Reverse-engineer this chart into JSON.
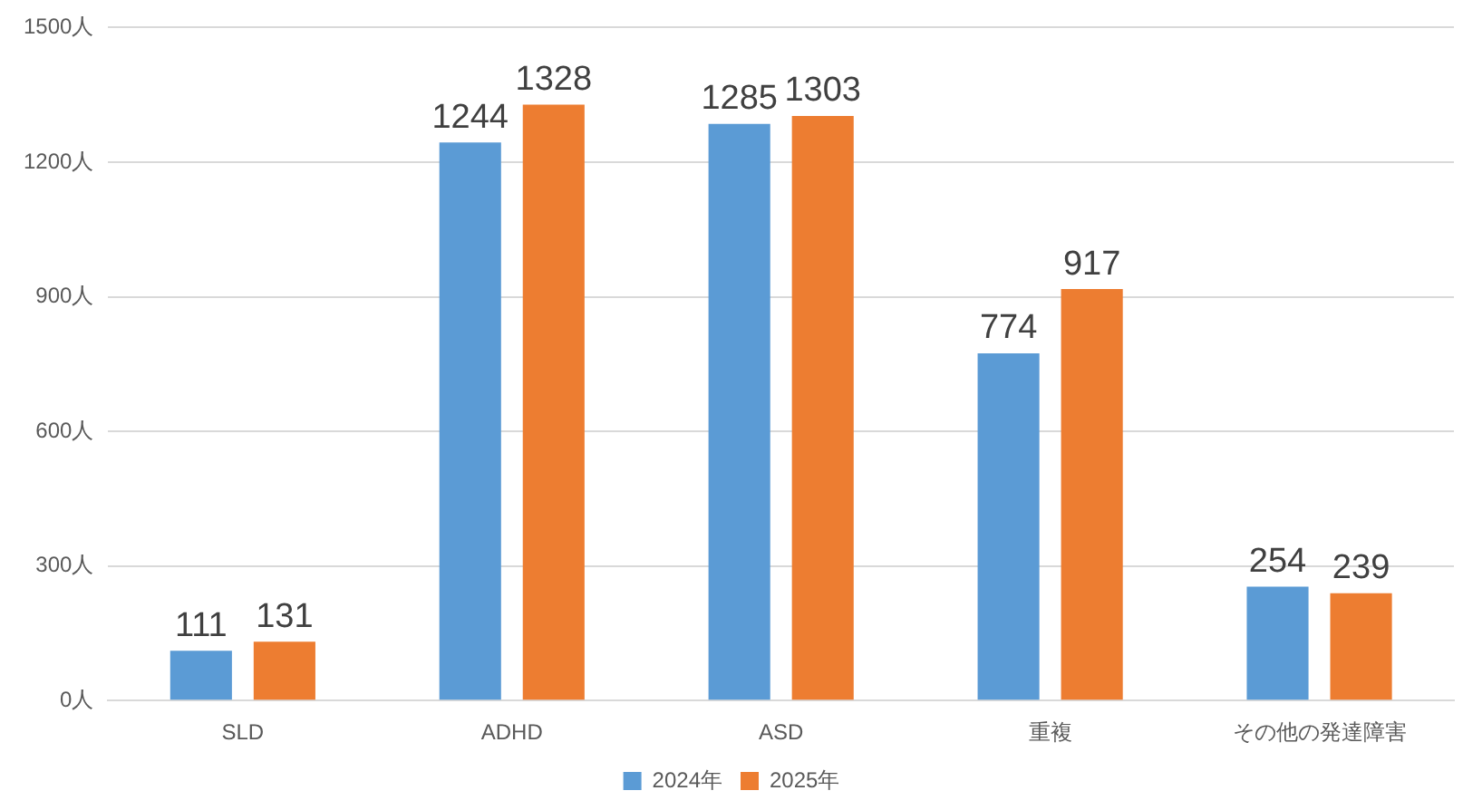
{
  "chart_data": {
    "type": "bar",
    "categories": [
      "SLD",
      "ADHD",
      "ASD",
      "重複",
      "その他の発達障害"
    ],
    "series": [
      {
        "name": "2024年",
        "color": "#5b9bd5",
        "values": [
          111,
          1244,
          1285,
          774,
          254
        ]
      },
      {
        "name": "2025年",
        "color": "#ed7d31",
        "values": [
          131,
          1328,
          1303,
          917,
          239
        ]
      }
    ],
    "ylim": [
      0,
      1500
    ],
    "yticks": [
      {
        "value": 0,
        "label": "0人"
      },
      {
        "value": 300,
        "label": "300人"
      },
      {
        "value": 600,
        "label": "600人"
      },
      {
        "value": 900,
        "label": "900人"
      },
      {
        "value": 1200,
        "label": "1200人"
      },
      {
        "value": 1500,
        "label": "1500人"
      }
    ],
    "grid": "y",
    "legend": "bottom",
    "data_labels": true
  }
}
